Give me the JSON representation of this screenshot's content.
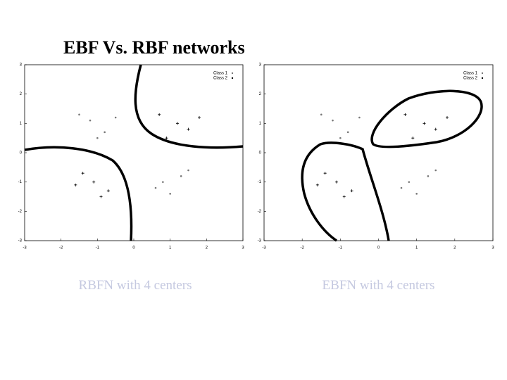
{
  "title": "EBF Vs. RBF networks",
  "chart_data": [
    {
      "type": "scatter",
      "caption": "RBFN with 4 centers",
      "xlim": [
        -3,
        3
      ],
      "ylim": [
        -3,
        3
      ],
      "xticks": [
        -3,
        -2,
        -1,
        0,
        1,
        2,
        3
      ],
      "yticks": [
        -3,
        -2,
        -1,
        0,
        1,
        2,
        3
      ],
      "series": [
        {
          "name": "Class 1",
          "color": "#777777",
          "x": [
            -1.2,
            -0.8,
            -1.5,
            -0.5,
            -1.0,
            0.8,
            1.3,
            1.0,
            0.6,
            1.5
          ],
          "values": [
            1.1,
            0.7,
            1.3,
            1.2,
            0.5,
            -1.0,
            -0.8,
            -1.4,
            -1.2,
            -0.6
          ]
        },
        {
          "name": "Class 2",
          "color": "#000000",
          "x": [
            1.2,
            0.7,
            1.5,
            0.9,
            1.8,
            -1.1,
            -0.7,
            -1.4,
            -0.9,
            -1.6
          ],
          "values": [
            1.0,
            1.3,
            0.8,
            0.5,
            1.2,
            -1.0,
            -1.3,
            -0.7,
            -1.5,
            -1.1
          ]
        }
      ]
    },
    {
      "type": "scatter",
      "caption": "EBFN with 4 centers",
      "xlim": [
        -3,
        3
      ],
      "ylim": [
        -3,
        3
      ],
      "xticks": [
        -3,
        -2,
        -1,
        0,
        1,
        2,
        3
      ],
      "yticks": [
        -3,
        -2,
        -1,
        0,
        1,
        2,
        3
      ],
      "series": [
        {
          "name": "Class 1",
          "color": "#777777",
          "x": [
            -1.2,
            -0.8,
            -1.5,
            -0.5,
            -1.0,
            0.8,
            1.3,
            1.0,
            0.6,
            1.5
          ],
          "values": [
            1.1,
            0.7,
            1.3,
            1.2,
            0.5,
            -1.0,
            -0.8,
            -1.4,
            -1.2,
            -0.6
          ]
        },
        {
          "name": "Class 2",
          "color": "#000000",
          "x": [
            1.2,
            0.7,
            1.5,
            0.9,
            1.8,
            -1.1,
            -0.7,
            -1.4,
            -0.9,
            -1.6
          ],
          "values": [
            1.0,
            1.3,
            0.8,
            0.5,
            1.2,
            -1.0,
            -1.3,
            -0.7,
            -1.5,
            -1.1
          ]
        }
      ]
    }
  ]
}
